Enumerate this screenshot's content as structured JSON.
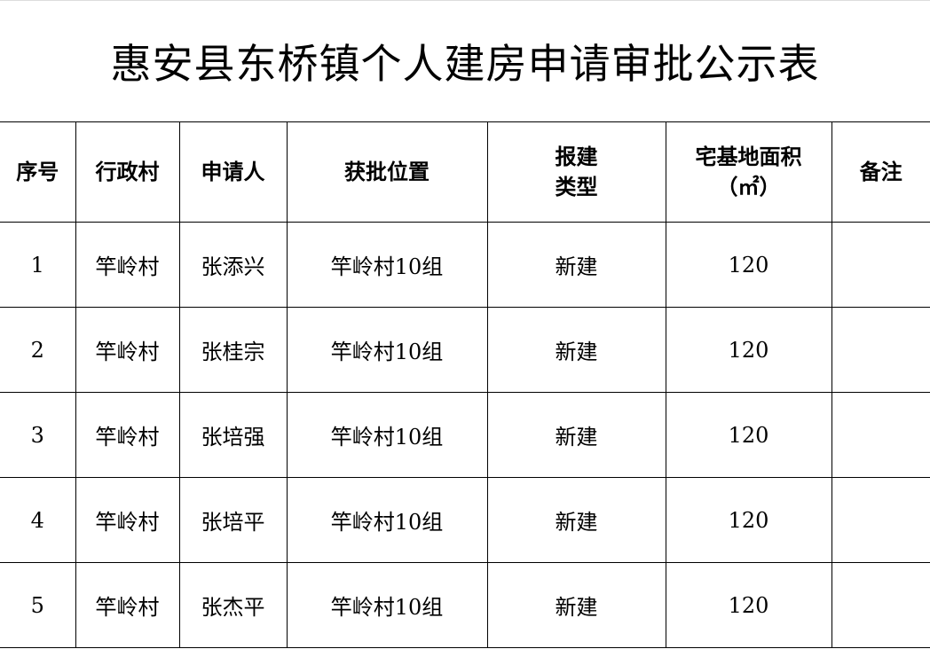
{
  "title": "惠安县东桥镇个人建房申请审批公示表",
  "headers": [
    "序号",
    "行政村",
    "申请人",
    "获批位置",
    "报建",
    "类型",
    "宅基地面积",
    "（㎡）",
    "备注"
  ],
  "rows": [
    {
      "no": "1",
      "village": "竿岭村",
      "applicant": "张添兴",
      "location": "竿岭村10组",
      "type": "新建",
      "area": "120",
      "note": ""
    },
    {
      "no": "2",
      "village": "竿岭村",
      "applicant": "张桂宗",
      "location": "竿岭村10组",
      "type": "新建",
      "area": "120",
      "note": ""
    },
    {
      "no": "3",
      "village": "竿岭村",
      "applicant": "张培强",
      "location": "竿岭村10组",
      "type": "新建",
      "area": "120",
      "note": ""
    },
    {
      "no": "4",
      "village": "竿岭村",
      "applicant": "张培平",
      "location": "竿岭村10组",
      "type": "新建",
      "area": "120",
      "note": ""
    },
    {
      "no": "5",
      "village": "竿岭村",
      "applicant": "张杰平",
      "location": "竿岭村10组",
      "type": "新建",
      "area": "120",
      "note": ""
    }
  ]
}
